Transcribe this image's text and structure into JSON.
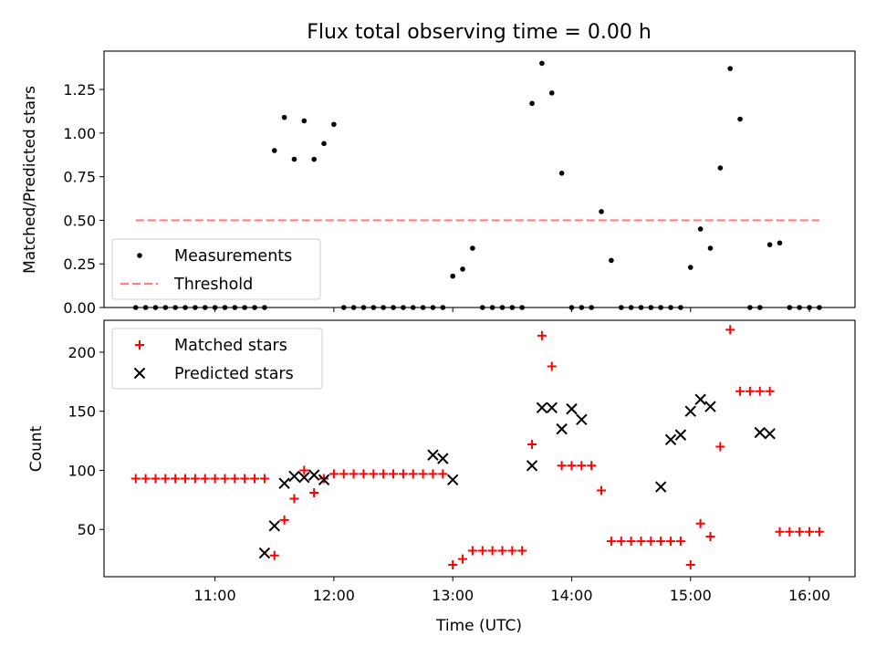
{
  "chart_data": [
    {
      "type": "scatter",
      "title": "Flux total observing time = 0.00 h",
      "ylabel": "Matched/Predicted stars",
      "xlabel": "",
      "ylim": [
        0,
        1.47
      ],
      "xlim": [
        "10:04",
        "16:23"
      ],
      "legend_position": "lower-left",
      "yticks": [
        "0.00",
        "0.25",
        "0.50",
        "0.75",
        "1.00",
        "1.25"
      ],
      "series": [
        {
          "name": "Measurements",
          "color": "#000000",
          "marker": "dot",
          "x": [
            "10:20",
            "10:25",
            "10:30",
            "10:35",
            "10:40",
            "10:45",
            "10:50",
            "10:55",
            "11:00",
            "11:05",
            "11:10",
            "11:15",
            "11:20",
            "11:25",
            "11:30",
            "11:35",
            "11:40",
            "11:45",
            "11:50",
            "11:55",
            "12:00",
            "12:05",
            "12:10",
            "12:15",
            "12:20",
            "12:25",
            "12:30",
            "12:35",
            "12:40",
            "12:45",
            "12:50",
            "12:55",
            "13:00",
            "13:05",
            "13:10",
            "13:15",
            "13:20",
            "13:25",
            "13:30",
            "13:35",
            "13:40",
            "13:45",
            "13:50",
            "13:55",
            "14:00",
            "14:05",
            "14:10",
            "14:15",
            "14:20",
            "14:25",
            "14:30",
            "14:35",
            "14:40",
            "14:45",
            "14:50",
            "14:55",
            "15:00",
            "15:05",
            "15:10",
            "15:15",
            "15:20",
            "15:25",
            "15:30",
            "15:35",
            "15:40",
            "15:45",
            "15:50",
            "15:55",
            "16:00",
            "16:05"
          ],
          "y": [
            0,
            0,
            0,
            0,
            0,
            0,
            0,
            0,
            0,
            0,
            0,
            0,
            0,
            0,
            0.9,
            1.09,
            0.85,
            1.07,
            0.85,
            0.94,
            1.05,
            0,
            0,
            0,
            0,
            0,
            0,
            0,
            0,
            0,
            0,
            0,
            0.18,
            0.22,
            0.34,
            0,
            0,
            0,
            0,
            0,
            1.17,
            1.4,
            1.23,
            0.77,
            0,
            0,
            0,
            0.55,
            0.27,
            0,
            0,
            0,
            0,
            0,
            0,
            0,
            0.23,
            0.45,
            0.34,
            0.8,
            1.37,
            1.08,
            0,
            0,
            0.36,
            0.37,
            0,
            0,
            0,
            0
          ]
        },
        {
          "name": "Threshold",
          "color": "#ff7f7f",
          "style": "dashed",
          "x": [
            "10:20",
            "16:05"
          ],
          "y": [
            0.5,
            0.5
          ]
        }
      ]
    },
    {
      "type": "scatter",
      "title": "",
      "xlabel": "Time (UTC)",
      "ylabel": "Count",
      "ylim": [
        10,
        227
      ],
      "xlim": [
        "10:04",
        "16:23"
      ],
      "legend_position": "upper-left",
      "xticks": [
        "11:00",
        "12:00",
        "13:00",
        "14:00",
        "15:00",
        "16:00"
      ],
      "yticks": [
        "50",
        "100",
        "150",
        "200"
      ],
      "series": [
        {
          "name": "Matched stars",
          "color": "#ff0000",
          "marker": "plus",
          "x": [
            "10:20",
            "10:25",
            "10:30",
            "10:35",
            "10:40",
            "10:45",
            "10:50",
            "10:55",
            "11:00",
            "11:05",
            "11:10",
            "11:15",
            "11:20",
            "11:25",
            "11:30",
            "11:35",
            "11:40",
            "11:45",
            "11:50",
            "11:55",
            "12:00",
            "12:05",
            "12:10",
            "12:15",
            "12:20",
            "12:25",
            "12:30",
            "12:35",
            "12:40",
            "12:45",
            "12:50",
            "12:55",
            "13:00",
            "13:05",
            "13:10",
            "13:15",
            "13:20",
            "13:25",
            "13:30",
            "13:35",
            "13:40",
            "13:45",
            "13:50",
            "13:55",
            "14:00",
            "14:05",
            "14:10",
            "14:15",
            "14:20",
            "14:25",
            "14:30",
            "14:35",
            "14:40",
            "14:45",
            "14:50",
            "14:55",
            "15:00",
            "15:05",
            "15:10",
            "15:15",
            "15:20",
            "15:25",
            "15:30",
            "15:35",
            "15:40",
            "15:45",
            "15:50",
            "15:55",
            "16:00",
            "16:05"
          ],
          "y": [
            93,
            93,
            93,
            93,
            93,
            93,
            93,
            93,
            93,
            93,
            93,
            93,
            93,
            93,
            28,
            58,
            76,
            100,
            81,
            93,
            97,
            97,
            97,
            97,
            97,
            97,
            97,
            97,
            97,
            97,
            97,
            97,
            20,
            25,
            32,
            32,
            32,
            32,
            32,
            32,
            122,
            214,
            188,
            104,
            104,
            104,
            104,
            83,
            40,
            40,
            40,
            40,
            40,
            40,
            40,
            40,
            20,
            55,
            44,
            120,
            219,
            167,
            167,
            167,
            167,
            48,
            48,
            48,
            48,
            48
          ]
        },
        {
          "name": "Predicted stars",
          "color": "#000000",
          "marker": "x",
          "x": [
            "11:25",
            "11:30",
            "11:35",
            "11:40",
            "11:45",
            "11:50",
            "11:55",
            "12:50",
            "12:55",
            "13:00",
            "13:40",
            "13:45",
            "13:50",
            "13:55",
            "14:00",
            "14:05",
            "14:45",
            "14:50",
            "14:55",
            "15:00",
            "15:05",
            "15:10",
            "15:35",
            "15:40"
          ],
          "y": [
            30,
            53,
            89,
            95,
            94,
            96,
            92,
            113,
            110,
            92,
            104,
            153,
            153,
            135,
            152,
            143,
            86,
            126,
            130,
            150,
            160,
            154,
            132,
            131
          ]
        }
      ]
    }
  ]
}
